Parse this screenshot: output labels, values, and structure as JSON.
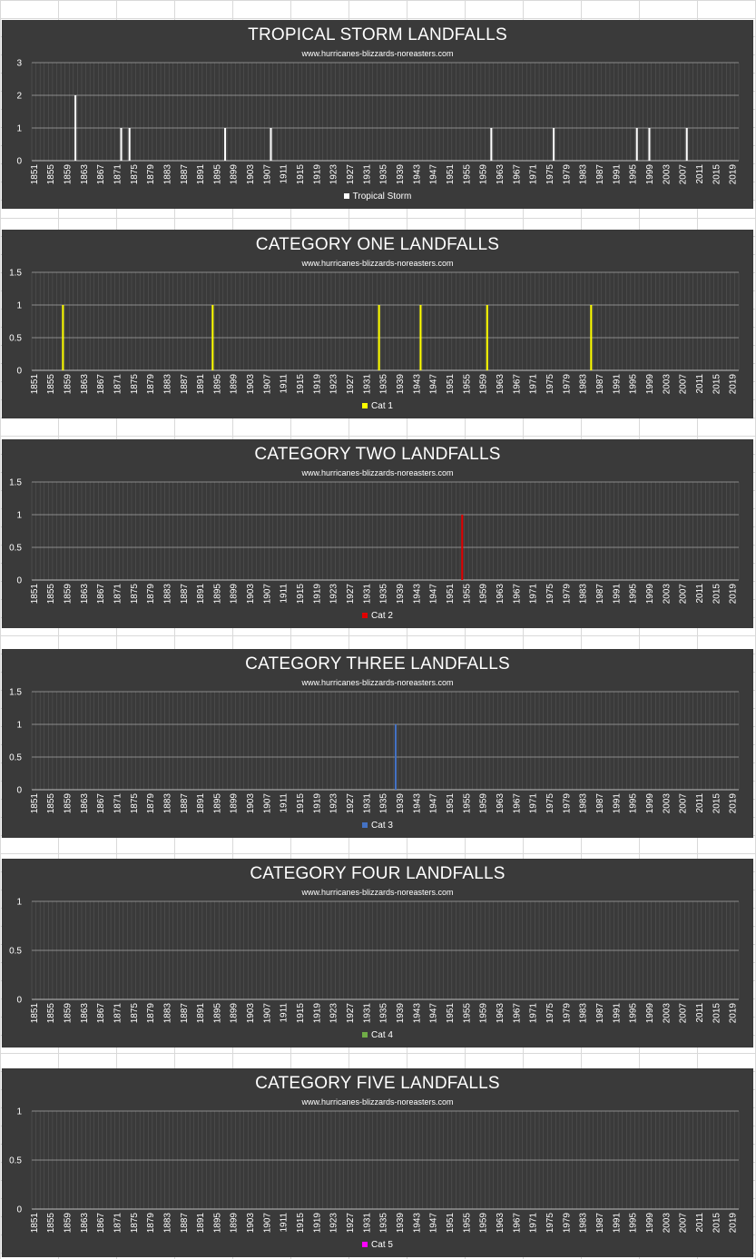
{
  "site": "www.hurricanes-blizzards-noreasters.com",
  "chart_data": [
    {
      "type": "bar",
      "title": "TROPICAL STORM LANDFALLS",
      "subtitle": "www.hurricanes-blizzards-noreasters.com",
      "x_range": [
        1851,
        2021
      ],
      "tick_labels": [
        "1851",
        "1855",
        "1859",
        "1863",
        "1867",
        "1871",
        "1875",
        "1879",
        "1883",
        "1887",
        "1891",
        "1895",
        "1899",
        "1903",
        "1907",
        "1911",
        "1915",
        "1919",
        "1923",
        "1927",
        "1931",
        "1935",
        "1939",
        "1943",
        "1947",
        "1951",
        "1955",
        "1959",
        "1963",
        "1967",
        "1971",
        "1975",
        "1979",
        "1983",
        "1987",
        "1991",
        "1995",
        "1999",
        "2003",
        "2007",
        "2011",
        "2015",
        "2019"
      ],
      "ylim": [
        0,
        3
      ],
      "yticks": [
        0,
        1,
        2,
        3
      ],
      "grid": true,
      "legend_position": "bottom",
      "series": [
        {
          "name": "Tropical Storm",
          "color": "#ffffff",
          "points": [
            {
              "x": 1861,
              "y": 2
            },
            {
              "x": 1872,
              "y": 1
            },
            {
              "x": 1874,
              "y": 1
            },
            {
              "x": 1897,
              "y": 1
            },
            {
              "x": 1908,
              "y": 1
            },
            {
              "x": 1961,
              "y": 1
            },
            {
              "x": 1976,
              "y": 1
            },
            {
              "x": 1996,
              "y": 1
            },
            {
              "x": 1999,
              "y": 1
            },
            {
              "x": 2008,
              "y": 1
            }
          ]
        }
      ]
    },
    {
      "type": "bar",
      "title": "CATEGORY ONE LANDFALLS",
      "subtitle": "www.hurricanes-blizzards-noreasters.com",
      "x_range": [
        1851,
        2021
      ],
      "tick_labels": [
        "1851",
        "1855",
        "1859",
        "1863",
        "1867",
        "1871",
        "1875",
        "1879",
        "1883",
        "1887",
        "1891",
        "1895",
        "1899",
        "1903",
        "1907",
        "1911",
        "1915",
        "1919",
        "1923",
        "1927",
        "1931",
        "1935",
        "1939",
        "1943",
        "1947",
        "1951",
        "1955",
        "1959",
        "1963",
        "1967",
        "1971",
        "1975",
        "1979",
        "1983",
        "1987",
        "1991",
        "1995",
        "1999",
        "2003",
        "2007",
        "2011",
        "2015",
        "2019"
      ],
      "ylim": [
        0,
        1.5
      ],
      "yticks": [
        0,
        0.5,
        1,
        1.5
      ],
      "grid": true,
      "legend_position": "bottom",
      "series": [
        {
          "name": "Cat 1",
          "color": "#ffff00",
          "points": [
            {
              "x": 1858,
              "y": 1
            },
            {
              "x": 1894,
              "y": 1
            },
            {
              "x": 1934,
              "y": 1
            },
            {
              "x": 1944,
              "y": 1
            },
            {
              "x": 1960,
              "y": 1
            },
            {
              "x": 1985,
              "y": 1
            }
          ]
        }
      ]
    },
    {
      "type": "bar",
      "title": "CATEGORY TWO LANDFALLS",
      "subtitle": "www.hurricanes-blizzards-noreasters.com",
      "x_range": [
        1851,
        2021
      ],
      "tick_labels": [
        "1851",
        "1855",
        "1859",
        "1863",
        "1867",
        "1871",
        "1875",
        "1879",
        "1883",
        "1887",
        "1891",
        "1895",
        "1899",
        "1903",
        "1907",
        "1911",
        "1915",
        "1919",
        "1923",
        "1927",
        "1931",
        "1935",
        "1939",
        "1943",
        "1947",
        "1951",
        "1955",
        "1959",
        "1963",
        "1967",
        "1971",
        "1975",
        "1979",
        "1983",
        "1987",
        "1991",
        "1995",
        "1999",
        "2003",
        "2007",
        "2011",
        "2015",
        "2019"
      ],
      "ylim": [
        0,
        1.5
      ],
      "yticks": [
        0,
        0.5,
        1,
        1.5
      ],
      "grid": true,
      "legend_position": "bottom",
      "series": [
        {
          "name": "Cat 2",
          "color": "#e00000",
          "points": [
            {
              "x": 1954,
              "y": 1
            }
          ]
        }
      ]
    },
    {
      "type": "bar",
      "title": "CATEGORY THREE LANDFALLS",
      "subtitle": "www.hurricanes-blizzards-noreasters.com",
      "x_range": [
        1851,
        2021
      ],
      "tick_labels": [
        "1851",
        "1855",
        "1859",
        "1863",
        "1867",
        "1871",
        "1875",
        "1879",
        "1883",
        "1887",
        "1891",
        "1895",
        "1899",
        "1903",
        "1907",
        "1911",
        "1915",
        "1919",
        "1923",
        "1927",
        "1931",
        "1935",
        "1939",
        "1943",
        "1947",
        "1951",
        "1955",
        "1959",
        "1963",
        "1967",
        "1971",
        "1975",
        "1979",
        "1983",
        "1987",
        "1991",
        "1995",
        "1999",
        "2003",
        "2007",
        "2011",
        "2015",
        "2019"
      ],
      "ylim": [
        0,
        1.5
      ],
      "yticks": [
        0,
        0.5,
        1,
        1.5
      ],
      "grid": true,
      "legend_position": "bottom",
      "series": [
        {
          "name": "Cat 3",
          "color": "#4472c4",
          "points": [
            {
              "x": 1938,
              "y": 1
            }
          ]
        }
      ]
    },
    {
      "type": "bar",
      "title": "CATEGORY FOUR LANDFALLS",
      "subtitle": "www.hurricanes-blizzards-noreasters.com",
      "x_range": [
        1851,
        2021
      ],
      "tick_labels": [
        "1851",
        "1855",
        "1859",
        "1863",
        "1867",
        "1871",
        "1875",
        "1879",
        "1883",
        "1887",
        "1891",
        "1895",
        "1899",
        "1903",
        "1907",
        "1911",
        "1915",
        "1919",
        "1923",
        "1927",
        "1931",
        "1935",
        "1939",
        "1943",
        "1947",
        "1951",
        "1955",
        "1959",
        "1963",
        "1967",
        "1971",
        "1975",
        "1979",
        "1983",
        "1987",
        "1991",
        "1995",
        "1999",
        "2003",
        "2007",
        "2011",
        "2015",
        "2019"
      ],
      "ylim": [
        0,
        1
      ],
      "yticks": [
        0,
        0.5,
        1
      ],
      "grid": true,
      "legend_position": "bottom",
      "series": [
        {
          "name": "Cat 4",
          "color": "#70ad47",
          "points": []
        }
      ]
    },
    {
      "type": "bar",
      "title": "CATEGORY FIVE LANDFALLS",
      "subtitle": "www.hurricanes-blizzards-noreasters.com",
      "x_range": [
        1851,
        2021
      ],
      "tick_labels": [
        "1851",
        "1855",
        "1859",
        "1863",
        "1867",
        "1871",
        "1875",
        "1879",
        "1883",
        "1887",
        "1891",
        "1895",
        "1899",
        "1903",
        "1907",
        "1911",
        "1915",
        "1919",
        "1923",
        "1927",
        "1931",
        "1935",
        "1939",
        "1943",
        "1947",
        "1951",
        "1955",
        "1959",
        "1963",
        "1967",
        "1971",
        "1975",
        "1979",
        "1983",
        "1987",
        "1991",
        "1995",
        "1999",
        "2003",
        "2007",
        "2011",
        "2015",
        "2019"
      ],
      "ylim": [
        0,
        1
      ],
      "yticks": [
        0,
        0.5,
        1
      ],
      "grid": true,
      "legend_position": "bottom",
      "series": [
        {
          "name": "Cat 5",
          "color": "#ff00ff",
          "points": []
        }
      ]
    }
  ]
}
